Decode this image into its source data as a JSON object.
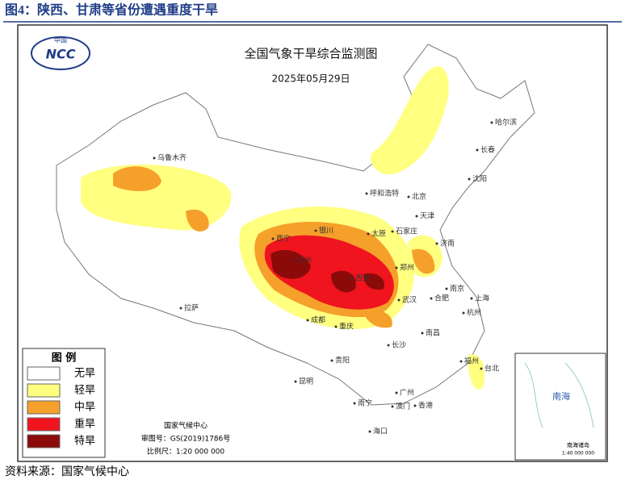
{
  "header": {
    "title": "图4：陕西、甘肃等省份遭遇重度干旱"
  },
  "map": {
    "title": "全国气象干旱综合监测图",
    "date": "2025年05月29日",
    "logo_caption": "中国",
    "logo_text": "NCC",
    "legend": {
      "title": "图 例",
      "items": [
        {
          "label": "无旱",
          "color": "#ffffff"
        },
        {
          "label": "轻旱",
          "color": "#ffff80"
        },
        {
          "label": "中旱",
          "color": "#f5a02a"
        },
        {
          "label": "重旱",
          "color": "#f0141e"
        },
        {
          "label": "特旱",
          "color": "#8b0a0a"
        }
      ]
    },
    "cities": [
      "乌鲁木齐",
      "哈尔滨",
      "长春",
      "沈阳",
      "呼和浩特",
      "北京",
      "天津",
      "石家庄",
      "太原",
      "济南",
      "银川",
      "兰州",
      "西宁",
      "郑州",
      "西安",
      "合肥",
      "南京",
      "上海",
      "杭州",
      "武汉",
      "拉萨",
      "成都",
      "重庆",
      "长沙",
      "南昌",
      "贵阳",
      "福州",
      "台北",
      "昆明",
      "南宁",
      "广州",
      "香港",
      "澳门",
      "海口"
    ],
    "credits": [
      "国家气候中心",
      "审图号：GS(2019)1786号",
      "比例尺：1:20 000 000"
    ],
    "inset": {
      "sea": "南海",
      "islands": "南海诸岛",
      "scale": "1:40 000 000"
    }
  },
  "footer": {
    "source": "资料来源：国家气候中心"
  }
}
